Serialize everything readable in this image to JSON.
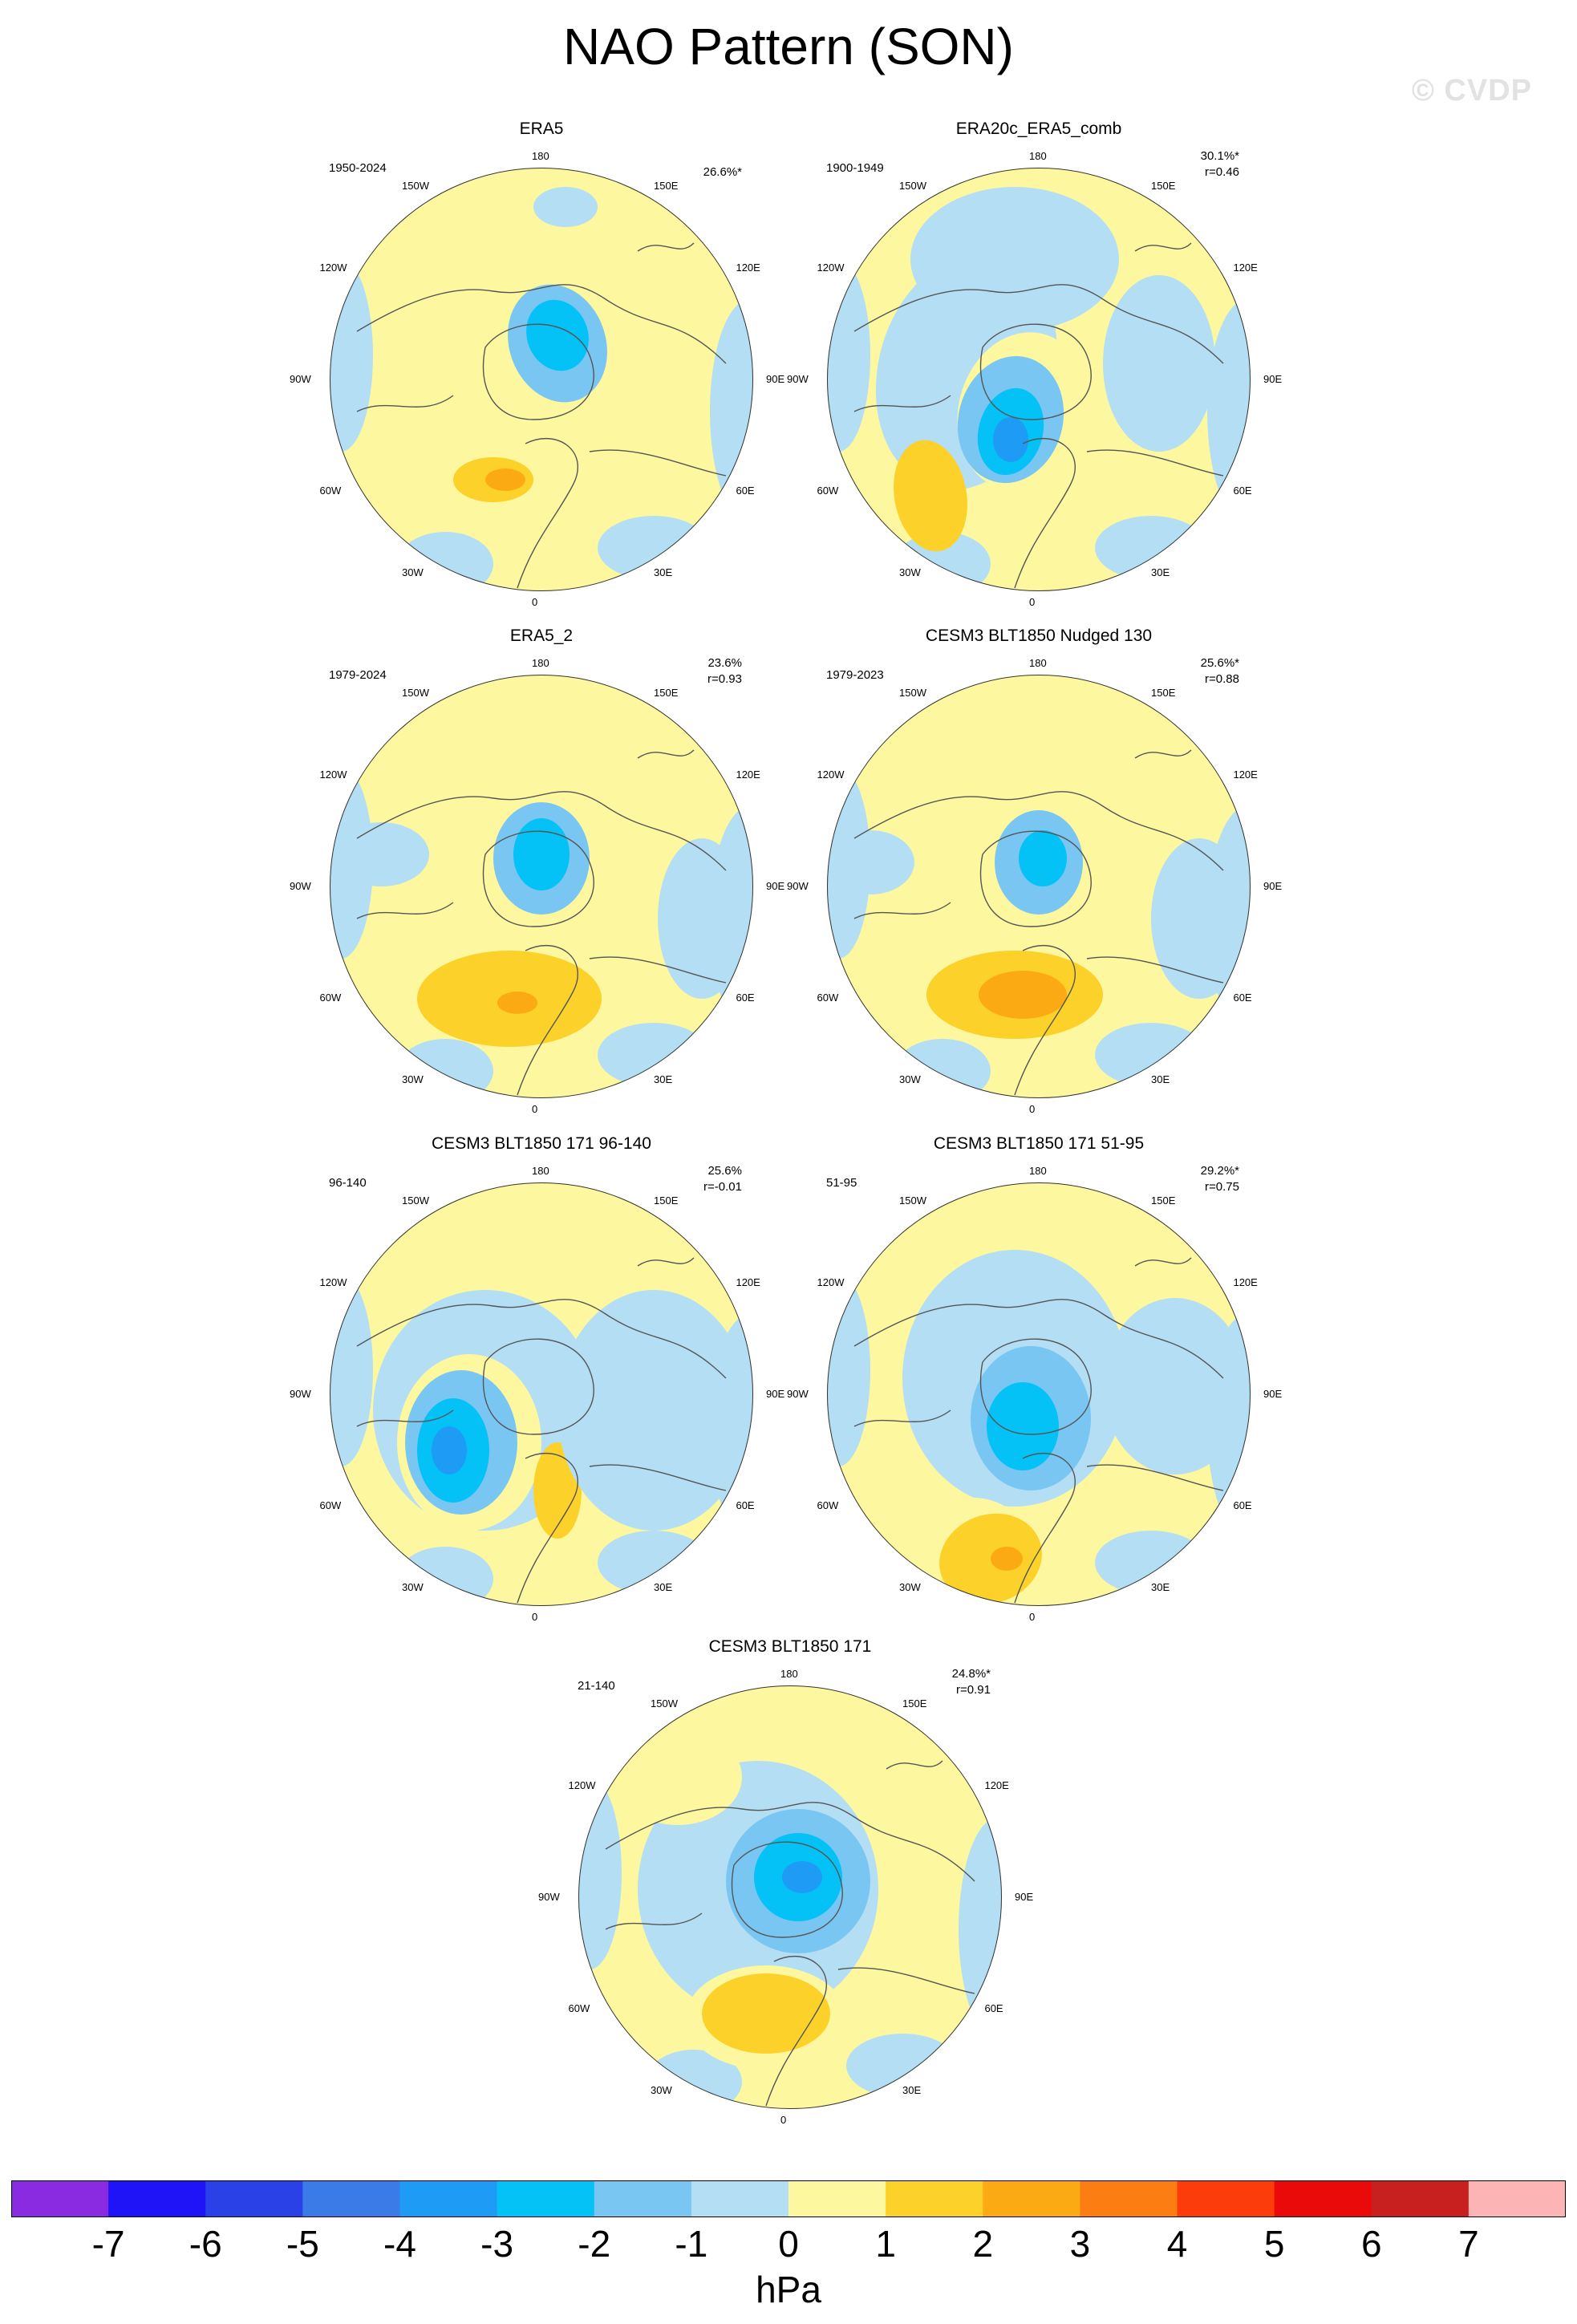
{
  "title": "NAO Pattern (SON)",
  "watermark": "© CVDP",
  "colors": {
    "ocean_neg1": "#b4def3",
    "pos1": "#fdf8a0",
    "pos2": "#fcd22a",
    "pos3": "#fcaa14",
    "neg2": "#79c6f2",
    "neg3": "#04c1f6",
    "neg4": "#1e9bf5",
    "coast": "#555555"
  },
  "longitude_labels": [
    "180",
    "150E",
    "120E",
    "90E",
    "60E",
    "30E",
    "0",
    "30W",
    "60W",
    "90W",
    "120W",
    "150W"
  ],
  "panels": [
    {
      "name": "ERA5",
      "period": "1950-2024",
      "pct": "26.6%*",
      "r": ""
    },
    {
      "name": "ERA20c_ERA5_comb",
      "period": "1900-1949",
      "pct": "30.1%*",
      "r": "r=0.46"
    },
    {
      "name": "ERA5_2",
      "period": "1979-2024",
      "pct": "23.6%",
      "r": "r=0.93"
    },
    {
      "name": "CESM3 BLT1850 Nudged 130",
      "period": "1979-2023",
      "pct": "25.6%*",
      "r": "r=0.88"
    },
    {
      "name": "CESM3 BLT1850 171 96-140",
      "period": "96-140",
      "pct": "25.6%",
      "r": "r=-0.01"
    },
    {
      "name": "CESM3 BLT1850 171 51-95",
      "period": "51-95",
      "pct": "29.2%*",
      "r": "r=0.75"
    },
    {
      "name": "CESM3 BLT1850 171",
      "period": "21-140",
      "pct": "24.8%*",
      "r": "r=0.91"
    }
  ],
  "chart_data": {
    "type": "heatmap",
    "title": "NAO Pattern (SON)",
    "colorbar": {
      "units": "hPa",
      "ticks": [
        "-7",
        "-6",
        "-5",
        "-4",
        "-3",
        "-2",
        "-1",
        "0",
        "1",
        "2",
        "3",
        "4",
        "5",
        "6",
        "7"
      ],
      "colors": [
        "#8a2be2",
        "#1e14f7",
        "#2941e6",
        "#3a7be8",
        "#1e9bf5",
        "#04c1f6",
        "#79c6f2",
        "#b4def3",
        "#fdf8a0",
        "#fcd22a",
        "#fcaa14",
        "#fc7d12",
        "#fc3c0a",
        "#ea0a0a",
        "#c8201f",
        "#fcb4b4"
      ]
    }
  }
}
